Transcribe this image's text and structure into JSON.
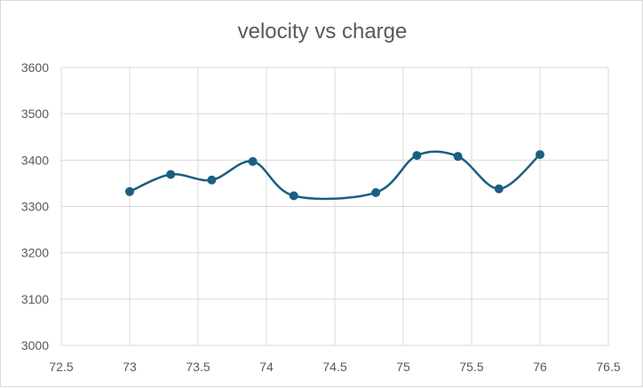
{
  "chart_data": {
    "type": "scatter",
    "title": "velocity vs charge",
    "xlabel": "",
    "ylabel": "",
    "xlim": [
      72.5,
      76.5
    ],
    "ylim": [
      3000,
      3600
    ],
    "x_ticks": [
      72.5,
      73,
      73.5,
      74,
      74.5,
      75,
      75.5,
      76,
      76.5
    ],
    "y_ticks": [
      3000,
      3100,
      3200,
      3300,
      3400,
      3500,
      3600
    ],
    "x_tick_labels": [
      "72.5",
      "73",
      "73.5",
      "74",
      "74.5",
      "75",
      "75.5",
      "76",
      "76.5"
    ],
    "y_tick_labels": [
      "3000",
      "3100",
      "3200",
      "3300",
      "3400",
      "3500",
      "3600"
    ],
    "grid": true,
    "line_style": "smoothed with markers",
    "series": [
      {
        "color": "#1a5e82",
        "x": [
          73,
          73.3,
          73.6,
          73.9,
          74.2,
          74.8,
          75.1,
          75.4,
          75.7,
          76
        ],
        "y": [
          3332,
          3369,
          3357,
          3397,
          3323,
          3330,
          3410,
          3408,
          3338,
          3412
        ]
      }
    ]
  }
}
